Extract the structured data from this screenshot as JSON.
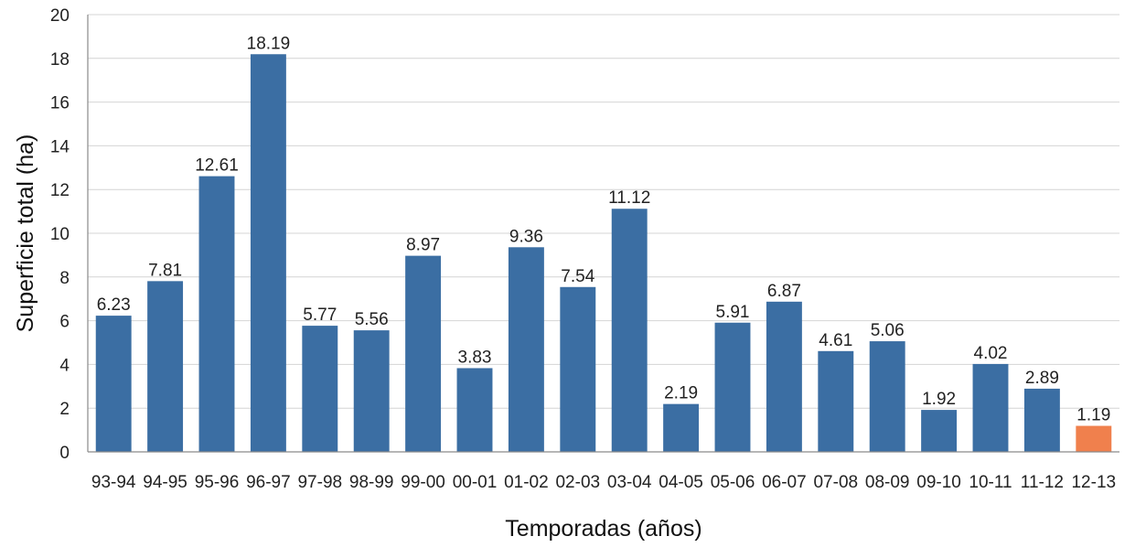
{
  "chart_data": {
    "type": "bar",
    "title": "",
    "xlabel": "Temporadas (años)",
    "ylabel": "Superficie total (ha)",
    "ylim": [
      0,
      20
    ],
    "yticks": [
      0,
      2,
      4,
      6,
      8,
      10,
      12,
      14,
      16,
      18,
      20
    ],
    "grid": true,
    "categories": [
      "93-94",
      "94-95",
      "95-96",
      "96-97",
      "97-98",
      "98-99",
      "99-00",
      "00-01",
      "01-02",
      "02-03",
      "03-04",
      "04-05",
      "05-06",
      "06-07",
      "07-08",
      "08-09",
      "09-10",
      "10-11",
      "11-12",
      "12-13"
    ],
    "values": [
      6.23,
      7.81,
      12.61,
      18.19,
      5.77,
      5.56,
      8.97,
      3.83,
      9.36,
      7.54,
      11.12,
      2.19,
      5.91,
      6.87,
      4.61,
      5.06,
      1.92,
      4.02,
      2.89,
      1.19
    ],
    "value_labels": [
      "6.23",
      "7.81",
      "12.61",
      "18.19",
      "5.77",
      "5.56",
      "8.97",
      "3.83",
      "9.36",
      "7.54",
      "11.12",
      "2.19",
      "5.91",
      "6.87",
      "4.61",
      "5.06",
      "1.92",
      "4.02",
      "2.89",
      "1.19"
    ],
    "colors": {
      "bar": "#3b6ea3",
      "highlight_bar": "#f0804d",
      "grid": "#d4d4d4",
      "axis": "#8a8a8a"
    },
    "highlight_index": 19
  }
}
